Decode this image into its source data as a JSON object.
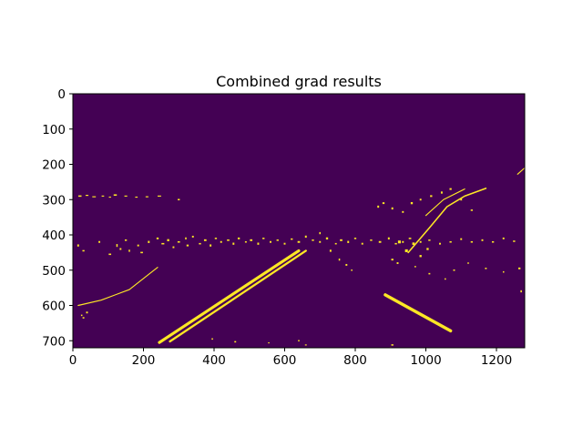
{
  "chart_data": {
    "type": "heatmap",
    "title": "Combined grad results",
    "xlabel": "",
    "ylabel": "",
    "xlim": [
      0,
      1280
    ],
    "ylim": [
      720,
      0
    ],
    "x_ticks": [
      0,
      200,
      400,
      600,
      800,
      1000,
      1200
    ],
    "y_ticks": [
      0,
      100,
      200,
      300,
      400,
      500,
      600,
      700
    ],
    "grid": false,
    "colormap": "viridis",
    "colors": {
      "background": "#440154",
      "foreground": "#fde725"
    },
    "lines": [
      {
        "name": "left-lane-outer",
        "points": [
          [
            245,
            705
          ],
          [
            640,
            445
          ]
        ],
        "width": 8
      },
      {
        "name": "left-lane-inner",
        "points": [
          [
            275,
            702
          ],
          [
            660,
            445
          ]
        ],
        "width": 6
      },
      {
        "name": "right-lane",
        "points": [
          [
            885,
            570
          ],
          [
            1070,
            672
          ]
        ],
        "width": 9
      },
      {
        "name": "horizon-left",
        "points": [
          [
            15,
            600
          ],
          [
            80,
            585
          ],
          [
            160,
            555
          ],
          [
            240,
            492
          ]
        ],
        "width": 3
      },
      {
        "name": "overpass-right",
        "points": [
          [
            950,
            450
          ],
          [
            1010,
            380
          ],
          [
            1060,
            320
          ],
          [
            1110,
            290
          ],
          [
            1170,
            268
          ]
        ],
        "width": 4
      },
      {
        "name": "overpass-edge",
        "points": [
          [
            1000,
            345
          ],
          [
            1050,
            300
          ],
          [
            1110,
            270
          ]
        ],
        "width": 3
      },
      {
        "name": "right-tip",
        "points": [
          [
            1260,
            228
          ],
          [
            1280,
            210
          ]
        ],
        "width": 3
      }
    ],
    "blobs": [
      [
        20,
        290,
        9,
        4
      ],
      [
        40,
        288,
        8,
        3
      ],
      [
        60,
        292,
        10,
        3
      ],
      [
        85,
        290,
        7,
        3
      ],
      [
        105,
        293,
        6,
        3
      ],
      [
        120,
        287,
        9,
        4
      ],
      [
        150,
        290,
        8,
        3
      ],
      [
        180,
        293,
        7,
        3
      ],
      [
        210,
        292,
        8,
        3
      ],
      [
        245,
        290,
        10,
        3
      ],
      [
        300,
        300,
        6,
        4
      ],
      [
        15,
        430,
        5,
        6
      ],
      [
        30,
        445,
        6,
        4
      ],
      [
        75,
        420,
        5,
        5
      ],
      [
        105,
        455,
        7,
        4
      ],
      [
        125,
        430,
        4,
        8
      ],
      [
        135,
        440,
        5,
        5
      ],
      [
        150,
        415,
        6,
        4
      ],
      [
        160,
        445,
        4,
        6
      ],
      [
        185,
        430,
        5,
        5
      ],
      [
        195,
        450,
        7,
        4
      ],
      [
        215,
        420,
        5,
        6
      ],
      [
        240,
        410,
        6,
        5
      ],
      [
        255,
        425,
        8,
        4
      ],
      [
        270,
        415,
        6,
        6
      ],
      [
        285,
        435,
        5,
        5
      ],
      [
        300,
        420,
        7,
        4
      ],
      [
        320,
        410,
        4,
        6
      ],
      [
        325,
        430,
        6,
        5
      ],
      [
        340,
        405,
        5,
        5
      ],
      [
        360,
        425,
        6,
        4
      ],
      [
        375,
        415,
        7,
        5
      ],
      [
        390,
        430,
        5,
        6
      ],
      [
        405,
        410,
        6,
        4
      ],
      [
        420,
        420,
        5,
        5
      ],
      [
        440,
        415,
        7,
        4
      ],
      [
        455,
        425,
        5,
        6
      ],
      [
        470,
        410,
        6,
        5
      ],
      [
        490,
        420,
        5,
        4
      ],
      [
        505,
        415,
        7,
        5
      ],
      [
        525,
        425,
        5,
        6
      ],
      [
        540,
        410,
        6,
        4
      ],
      [
        560,
        420,
        5,
        5
      ],
      [
        580,
        415,
        6,
        4
      ],
      [
        600,
        425,
        5,
        5
      ],
      [
        620,
        412,
        6,
        4
      ],
      [
        640,
        420,
        7,
        5
      ],
      [
        660,
        405,
        5,
        6
      ],
      [
        680,
        415,
        6,
        4
      ],
      [
        700,
        420,
        5,
        5
      ],
      [
        720,
        410,
        6,
        6
      ],
      [
        745,
        425,
        5,
        4
      ],
      [
        760,
        415,
        7,
        5
      ],
      [
        780,
        420,
        5,
        6
      ],
      [
        800,
        410,
        6,
        4
      ],
      [
        820,
        425,
        5,
        5
      ],
      [
        845,
        415,
        6,
        4
      ],
      [
        870,
        420,
        7,
        5
      ],
      [
        895,
        410,
        5,
        6
      ],
      [
        915,
        425,
        6,
        4
      ],
      [
        935,
        420,
        5,
        5
      ],
      [
        955,
        410,
        7,
        4
      ],
      [
        985,
        420,
        5,
        5
      ],
      [
        1010,
        415,
        6,
        4
      ],
      [
        1040,
        425,
        5,
        5
      ],
      [
        1070,
        420,
        6,
        4
      ],
      [
        1100,
        412,
        5,
        5
      ],
      [
        1130,
        420,
        6,
        4
      ],
      [
        1160,
        415,
        5,
        5
      ],
      [
        1190,
        420,
        6,
        4
      ],
      [
        1220,
        410,
        5,
        5
      ],
      [
        1250,
        418,
        6,
        4
      ],
      [
        700,
        395,
        4,
        6
      ],
      [
        730,
        445,
        5,
        6
      ],
      [
        755,
        470,
        4,
        6
      ],
      [
        775,
        485,
        5,
        5
      ],
      [
        790,
        500,
        4,
        4
      ],
      [
        905,
        470,
        6,
        5
      ],
      [
        920,
        480,
        5,
        5
      ],
      [
        970,
        490,
        4,
        4
      ],
      [
        1010,
        510,
        5,
        4
      ],
      [
        1055,
        525,
        4,
        4
      ],
      [
        1080,
        500,
        5,
        4
      ],
      [
        1120,
        480,
        4,
        4
      ],
      [
        1170,
        495,
        5,
        4
      ],
      [
        1220,
        505,
        4,
        4
      ],
      [
        1265,
        495,
        6,
        5
      ],
      [
        1270,
        560,
        4,
        6
      ],
      [
        865,
        320,
        5,
        6
      ],
      [
        880,
        310,
        6,
        5
      ],
      [
        905,
        325,
        5,
        6
      ],
      [
        935,
        335,
        5,
        5
      ],
      [
        960,
        310,
        6,
        6
      ],
      [
        985,
        300,
        5,
        5
      ],
      [
        1015,
        290,
        6,
        5
      ],
      [
        1045,
        280,
        5,
        6
      ],
      [
        1070,
        270,
        6,
        5
      ],
      [
        1100,
        300,
        5,
        5
      ],
      [
        1130,
        330,
        6,
        4
      ],
      [
        925,
        420,
        8,
        8
      ],
      [
        945,
        445,
        8,
        8
      ],
      [
        965,
        425,
        7,
        7
      ],
      [
        985,
        460,
        6,
        6
      ],
      [
        1005,
        440,
        6,
        6
      ],
      [
        40,
        620,
        5,
        5
      ],
      [
        25,
        628,
        4,
        4
      ],
      [
        30,
        635,
        5,
        4
      ],
      [
        905,
        712,
        6,
        4
      ],
      [
        900,
        720,
        5,
        3
      ],
      [
        395,
        695,
        4,
        4
      ],
      [
        460,
        703,
        5,
        4
      ],
      [
        555,
        706,
        4,
        3
      ],
      [
        640,
        700,
        4,
        4
      ],
      [
        660,
        712,
        5,
        3
      ]
    ]
  }
}
